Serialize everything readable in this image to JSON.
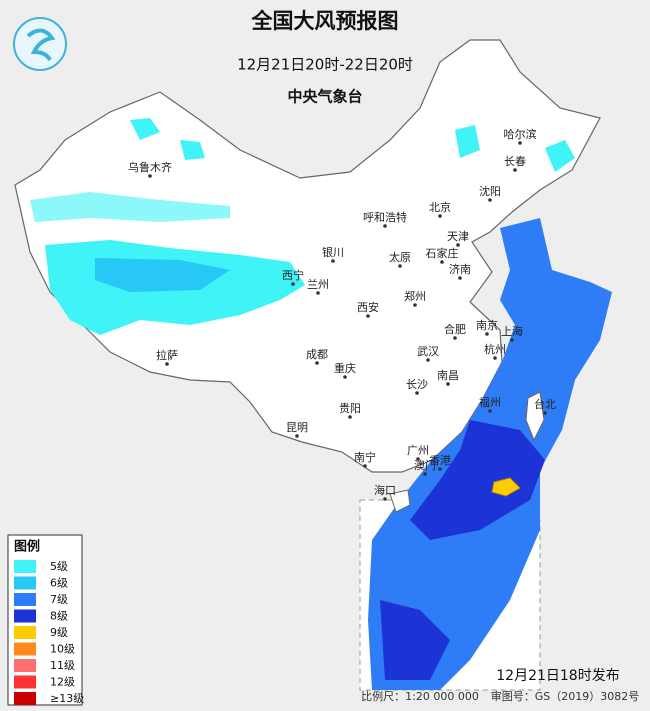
{
  "header": {
    "title": "全国大风预报图",
    "subtitle": "12月21日20时-22日20时",
    "issuer": "中央气象台"
  },
  "cities": [
    "乌鲁木齐",
    "哈尔滨",
    "长春",
    "沈阳",
    "北京",
    "呼和浩特",
    "天津",
    "太原",
    "石家庄",
    "济南",
    "银川",
    "西宁",
    "兰州",
    "郑州",
    "西安",
    "合肥",
    "南京",
    "上海",
    "杭州",
    "武汉",
    "成都",
    "重庆",
    "拉萨",
    "南昌",
    "长沙",
    "福州",
    "台北",
    "贵阳",
    "昆明",
    "广州",
    "南宁",
    "海口",
    "香港",
    "澳门"
  ],
  "legend": {
    "title": "图例",
    "items": [
      {
        "label": "5级",
        "color": "#3ff3f7"
      },
      {
        "label": "6级",
        "color": "#27c8f5"
      },
      {
        "label": "7级",
        "color": "#2e7cf6"
      },
      {
        "label": "8级",
        "color": "#1c34d6"
      },
      {
        "label": "9级",
        "color": "#ffcc00"
      },
      {
        "label": "10级",
        "color": "#ff8a1c"
      },
      {
        "label": "11级",
        "color": "#ff6f6f"
      },
      {
        "label": "12级",
        "color": "#ff3333"
      },
      {
        "label": "≥13级",
        "color": "#c80000"
      }
    ]
  },
  "footer": {
    "release": "12月21日18时发布",
    "scale": "比例尺：1:20 000 000",
    "approval": "审图号：GS（2019）3082号"
  }
}
